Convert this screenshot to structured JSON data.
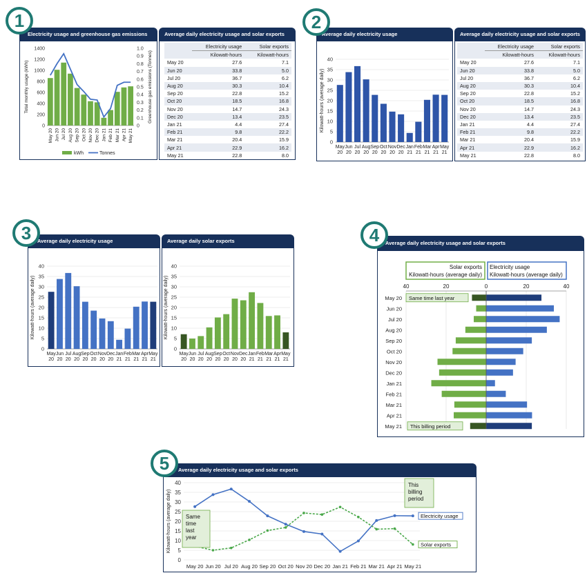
{
  "badges": [
    "1",
    "2",
    "3",
    "4",
    "5"
  ],
  "months": [
    "May 20",
    "Jun 20",
    "Jul 20",
    "Aug 20",
    "Sep 20",
    "Oct 20",
    "Nov 20",
    "Dec 20",
    "Jan 21",
    "Feb 21",
    "Mar 21",
    "Apr 21",
    "May 21"
  ],
  "month_top": [
    "May",
    "Jun",
    "Jul",
    "Aug",
    "Sep",
    "Oct",
    "Nov",
    "Dec",
    "Jan",
    "Feb",
    "Mar",
    "Apr",
    "May"
  ],
  "month_bottom": [
    "20",
    "20",
    "20",
    "20",
    "20",
    "20",
    "20",
    "20",
    "21",
    "21",
    "21",
    "21",
    "21"
  ],
  "colors": {
    "navy": "#17305a",
    "blue": "#4472c4",
    "dark_blue": "#1f3d7a",
    "green": "#70ad47",
    "dark_green": "#375623",
    "light_green_fill": "#e2efda",
    "grid": "#d9d9d9"
  },
  "panel1": {
    "title": "Electricity usage and greenhouse gas emissions",
    "ylabel_left": "Total monthly usage (kWh)",
    "ylabel_right": "Greenhouse gas emissions (Tonnes)",
    "legend": [
      "kWh",
      "Tonnes"
    ]
  },
  "table": {
    "title": "Average daily electricity usage and solar exports",
    "col1_header": "Electricity usage",
    "col2_header": "Solar exports",
    "col1_unit": "Kilowatt-hours",
    "col2_unit": "Kilowatt-hours"
  },
  "panel2": {
    "title": "Average daily electricity usage",
    "ylabel": "Kilowatt-hours (average daily)"
  },
  "panel3a": {
    "title": "Average daily electricity usage",
    "ylabel": "Kilowatt-hours (average daily)"
  },
  "panel3b": {
    "title": "Average daily solar exports",
    "ylabel": "Kilowatt-hours (average daily)"
  },
  "panel4": {
    "title": "Average daily electricity usage and solar exports",
    "left_header": [
      "Solar exports",
      "Kilowatt-hours  (average daily)"
    ],
    "right_header": [
      "Electricity usage",
      "Kilowatt-hours  (average daily)"
    ],
    "note_top": "Same time last year",
    "note_bottom": "This billing period"
  },
  "panel5": {
    "title": "Average daily electricity usage and solar exports",
    "ylabel": "Kilowatt-hours (average daily)",
    "note_left": [
      "Same",
      "time",
      "last",
      "year"
    ],
    "note_right": [
      "This",
      "billing",
      "period"
    ],
    "label_usage": "Electricity usage",
    "label_solar": "Solar exports"
  },
  "chart_data": [
    {
      "type": "bar",
      "title": "Electricity usage and greenhouse gas emissions",
      "categories": [
        "May 20",
        "Jun 20",
        "Jul 20",
        "Aug 20",
        "Sep 20",
        "Oct 20",
        "Nov 20",
        "Dec 20",
        "Jan 21",
        "Feb 21",
        "Mar 21",
        "Apr 21",
        "May 21"
      ],
      "series": [
        {
          "name": "kWh",
          "type": "bar",
          "axis": "left",
          "values": [
            860,
            1010,
            1140,
            940,
            680,
            560,
            440,
            420,
            140,
            280,
            610,
            690,
            710
          ]
        },
        {
          "name": "Tonnes",
          "type": "line",
          "axis": "right",
          "values": [
            0.65,
            0.8,
            0.93,
            0.73,
            0.53,
            0.44,
            0.34,
            0.33,
            0.11,
            0.22,
            0.52,
            0.56,
            0.56
          ]
        }
      ],
      "ylabel": "Total monthly usage (kWh)",
      "ylabel_right": "Greenhouse gas emissions (Tonnes)",
      "ylim": [
        0,
        1400
      ],
      "ylim_right": [
        0,
        1.0
      ],
      "yticks": [
        0,
        200,
        400,
        600,
        800,
        1000,
        1200,
        1400
      ],
      "yticks_right": [
        "0",
        "0.1",
        "0.2",
        "0.3",
        "0.4",
        "0.5",
        "0.6",
        "0.7",
        "0.8",
        "0.9",
        "1.0"
      ],
      "legend": "bottom"
    },
    {
      "type": "table",
      "title": "Average daily electricity usage and solar exports",
      "columns": [
        "",
        "Electricity usage",
        "Solar exports"
      ],
      "rows": [
        [
          "May 20",
          "27.6",
          "7.1"
        ],
        [
          "Jun 20",
          "33.8",
          "5.0"
        ],
        [
          "Jul 20",
          "36.7",
          "6.2"
        ],
        [
          "Aug 20",
          "30.3",
          "10.4"
        ],
        [
          "Sep 20",
          "22.8",
          "15.2"
        ],
        [
          "Oct 20",
          "18.5",
          "16.8"
        ],
        [
          "Nov 20",
          "14.7",
          "24.3"
        ],
        [
          "Dec 20",
          "13.4",
          "23.5"
        ],
        [
          "Jan 21",
          "4.4",
          "27.4"
        ],
        [
          "Feb 21",
          "9.8",
          "22.2"
        ],
        [
          "Mar 21",
          "20.4",
          "15.9"
        ],
        [
          "Apr 21",
          "22.9",
          "16.2"
        ],
        [
          "May 21",
          "22.8",
          "8.0"
        ]
      ]
    },
    {
      "type": "bar",
      "title": "Average daily electricity usage",
      "categories": [
        "May 20",
        "Jun 20",
        "Jul 20",
        "Aug 20",
        "Sep 20",
        "Oct 20",
        "Nov 20",
        "Dec 20",
        "Jan 21",
        "Feb 21",
        "Mar 21",
        "Apr 21",
        "May 21"
      ],
      "values": [
        27.6,
        33.8,
        36.7,
        30.3,
        22.8,
        18.5,
        14.7,
        13.4,
        4.4,
        9.8,
        20.4,
        22.9,
        22.8
      ],
      "ylabel": "Kilowatt-hours (average daily)",
      "ylim": [
        0,
        40
      ],
      "yticks": [
        0,
        5,
        10,
        15,
        20,
        25,
        30,
        35,
        40
      ]
    },
    {
      "type": "bar",
      "title": "Average daily electricity usage",
      "categories": [
        "May 20",
        "Jun 20",
        "Jul 20",
        "Aug 20",
        "Sep 20",
        "Oct 20",
        "Nov 20",
        "Dec 20",
        "Jan 21",
        "Feb 21",
        "Mar 21",
        "Apr 21",
        "May 21"
      ],
      "values": [
        27.6,
        33.8,
        36.7,
        30.3,
        22.8,
        18.5,
        14.7,
        13.4,
        4.4,
        9.8,
        20.4,
        22.9,
        22.8
      ],
      "ylabel": "Kilowatt-hours (average daily)",
      "ylim": [
        0,
        40
      ],
      "yticks": [
        0,
        5,
        10,
        15,
        20,
        25,
        30,
        35,
        40
      ]
    },
    {
      "type": "bar",
      "title": "Average daily solar exports",
      "categories": [
        "May 20",
        "Jun 20",
        "Jul 20",
        "Aug 20",
        "Sep 20",
        "Oct 20",
        "Nov 20",
        "Dec 20",
        "Jan 21",
        "Feb 21",
        "Mar 21",
        "Apr 21",
        "May 21"
      ],
      "values": [
        7.1,
        5.0,
        6.2,
        10.4,
        15.2,
        16.8,
        24.3,
        23.5,
        27.4,
        22.2,
        15.9,
        16.2,
        8.0
      ],
      "ylabel": "Kilowatt-hours (average daily)",
      "ylim": [
        0,
        40
      ],
      "yticks": [
        0,
        5,
        10,
        15,
        20,
        25,
        30,
        35,
        40
      ]
    },
    {
      "type": "bar",
      "orientation": "horizontal-butterfly",
      "title": "Average daily electricity usage and solar exports",
      "categories": [
        "May 20",
        "Jun 20",
        "Jul 20",
        "Aug 20",
        "Sep 20",
        "Oct 20",
        "Nov 20",
        "Dec 20",
        "Jan 21",
        "Feb 21",
        "Mar 21",
        "Apr 21",
        "May 21"
      ],
      "series": [
        {
          "name": "Solar exports",
          "side": "left",
          "values": [
            7.1,
            5.0,
            6.2,
            10.4,
            15.2,
            16.8,
            24.3,
            23.5,
            27.4,
            22.2,
            15.9,
            16.2,
            8.0
          ]
        },
        {
          "name": "Electricity usage",
          "side": "right",
          "values": [
            27.6,
            33.8,
            36.7,
            30.3,
            22.8,
            18.5,
            14.7,
            13.4,
            4.4,
            9.8,
            20.4,
            22.9,
            22.8
          ]
        }
      ],
      "xticks": [
        "40",
        "20",
        "0",
        "20",
        "40"
      ],
      "xlim": [
        -40,
        40
      ],
      "annotations": [
        "Same time last year",
        "This billing period"
      ]
    },
    {
      "type": "line",
      "title": "Average daily electricity usage and solar exports",
      "categories": [
        "May 20",
        "Jun 20",
        "Jul 20",
        "Aug 20",
        "Sep 20",
        "Oct 20",
        "Nov 20",
        "Dec 20",
        "Jan 21",
        "Feb 21",
        "Mar 21",
        "Apr 21",
        "May 21"
      ],
      "series": [
        {
          "name": "Electricity usage",
          "values": [
            27.6,
            33.8,
            36.7,
            30.3,
            22.8,
            18.5,
            14.7,
            13.4,
            4.4,
            9.8,
            20.4,
            22.9,
            22.8
          ]
        },
        {
          "name": "Solar exports",
          "values": [
            7.1,
            5.0,
            6.2,
            10.4,
            15.2,
            16.8,
            24.3,
            23.5,
            27.4,
            22.2,
            15.9,
            16.2,
            8.0
          ]
        }
      ],
      "ylabel": "Kilowatt-hours (average daily)",
      "ylim": [
        0,
        40
      ],
      "yticks": [
        0,
        5,
        10,
        15,
        20,
        25,
        30,
        35,
        40
      ],
      "annotations": [
        "Same time last year",
        "This billing period"
      ]
    }
  ]
}
